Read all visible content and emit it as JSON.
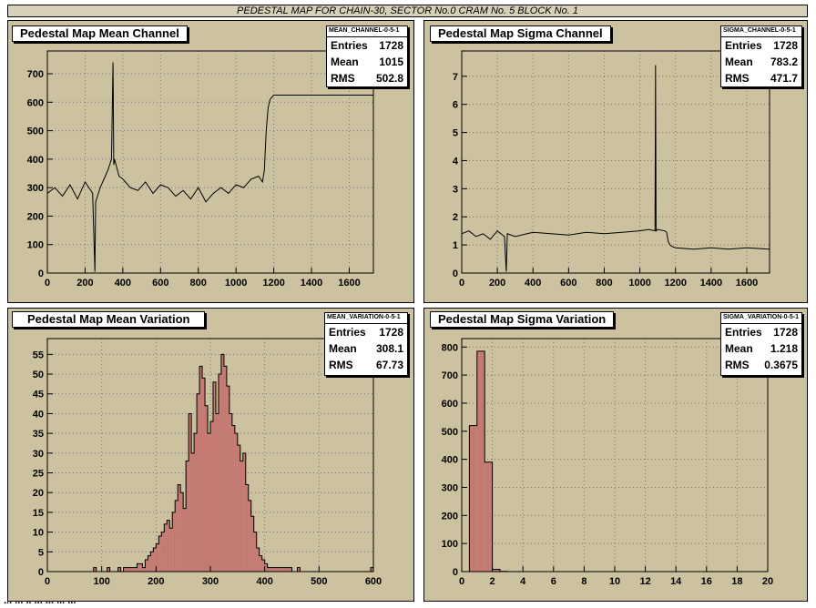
{
  "page_title": "PEDESTAL MAP FOR CHAIN-30, SECTOR No.0 CRAM No. 5 BLOCK No. 1",
  "footer": "... ... .. ... ... ... ...",
  "colors": {
    "pad_bg": "#ccc2a0",
    "hist_fill": "#c47a72",
    "line": "#000000"
  },
  "panels": [
    {
      "title": "Pedestal Map Mean Channel",
      "stats": {
        "name": "MEAN_CHANNEL-0-5-1",
        "rows": [
          [
            "Entries",
            "1728"
          ],
          [
            "Mean",
            "1015"
          ],
          [
            "RMS",
            "502.8"
          ]
        ]
      }
    },
    {
      "title": "Pedestal Map Sigma Channel",
      "stats": {
        "name": "SIGMA_CHANNEL-0-5-1",
        "rows": [
          [
            "Entries",
            "1728"
          ],
          [
            "Mean",
            "783.2"
          ],
          [
            "RMS",
            "471.7"
          ]
        ]
      }
    },
    {
      "title": "Pedestal Map Mean Variation",
      "stats": {
        "name": "MEAN_VARIATION-0-5-1",
        "rows": [
          [
            "Entries",
            "1728"
          ],
          [
            "Mean",
            "308.1"
          ],
          [
            "RMS",
            "67.73"
          ]
        ]
      }
    },
    {
      "title": "Pedestal Map Sigma Variation",
      "stats": {
        "name": "SIGMA_VARIATION-0-5-1",
        "rows": [
          [
            "Entries",
            "1728"
          ],
          [
            "Mean",
            "1.218"
          ],
          [
            "RMS",
            "0.3675"
          ]
        ]
      }
    }
  ],
  "chart_data": [
    {
      "type": "line",
      "title": "Pedestal Map Mean Channel",
      "xlim": [
        0,
        1728
      ],
      "ylim": [
        0,
        780
      ],
      "xticks": [
        0,
        200,
        400,
        600,
        800,
        1000,
        1200,
        1400,
        1600
      ],
      "yticks": [
        0,
        100,
        200,
        300,
        400,
        500,
        600,
        700
      ],
      "grid": true,
      "x": [
        0,
        40,
        80,
        120,
        160,
        200,
        240,
        252,
        256,
        280,
        320,
        340,
        348,
        352,
        356,
        380,
        400,
        440,
        480,
        520,
        560,
        600,
        640,
        680,
        720,
        760,
        800,
        840,
        880,
        920,
        960,
        1000,
        1040,
        1080,
        1120,
        1140,
        1150,
        1160,
        1170,
        1180,
        1200,
        1250,
        1300,
        1400,
        1500,
        1600,
        1728
      ],
      "y": [
        280,
        300,
        270,
        310,
        260,
        320,
        280,
        5,
        250,
        300,
        360,
        400,
        740,
        380,
        400,
        340,
        330,
        300,
        290,
        320,
        280,
        310,
        300,
        270,
        290,
        260,
        300,
        250,
        280,
        300,
        280,
        310,
        300,
        330,
        340,
        320,
        360,
        500,
        580,
        610,
        625,
        625,
        625,
        625,
        625,
        625,
        625
      ]
    },
    {
      "type": "line",
      "title": "Pedestal Map Sigma Channel",
      "xlim": [
        0,
        1728
      ],
      "ylim": [
        0,
        7.9
      ],
      "xticks": [
        0,
        200,
        400,
        600,
        800,
        1000,
        1200,
        1400,
        1600
      ],
      "yticks": [
        0,
        1,
        2,
        3,
        4,
        5,
        6,
        7
      ],
      "grid": true,
      "x": [
        0,
        40,
        80,
        120,
        160,
        200,
        240,
        250,
        256,
        300,
        400,
        500,
        600,
        700,
        800,
        900,
        1000,
        1050,
        1085,
        1088,
        1091,
        1100,
        1140,
        1150,
        1160,
        1170,
        1180,
        1200,
        1300,
        1400,
        1500,
        1600,
        1728
      ],
      "y": [
        1.4,
        1.5,
        1.3,
        1.4,
        1.2,
        1.5,
        1.3,
        0.05,
        1.4,
        1.3,
        1.45,
        1.4,
        1.35,
        1.45,
        1.4,
        1.45,
        1.5,
        1.55,
        1.5,
        7.4,
        1.5,
        1.55,
        1.5,
        1.45,
        1.1,
        1.0,
        0.95,
        0.9,
        0.85,
        0.9,
        0.85,
        0.9,
        0.85
      ]
    },
    {
      "type": "bar",
      "title": "Pedestal Map Mean Variation",
      "xlim": [
        0,
        600
      ],
      "ylim": [
        0,
        59
      ],
      "xticks": [
        0,
        100,
        200,
        300,
        400,
        500,
        600
      ],
      "yticks": [
        0,
        5,
        10,
        15,
        20,
        25,
        30,
        35,
        40,
        45,
        50,
        55
      ],
      "grid": true,
      "bin_start": 0,
      "bin_width": 5,
      "values": [
        0,
        0,
        0,
        0,
        0,
        0,
        0,
        0,
        0,
        0,
        0,
        0,
        0,
        0,
        0,
        0,
        0,
        1,
        0,
        0,
        0,
        0,
        1,
        0,
        0,
        0,
        1,
        0,
        1,
        1,
        1,
        1,
        1,
        2,
        2,
        1,
        3,
        4,
        5,
        6,
        7,
        9,
        10,
        12,
        13,
        11,
        15,
        18,
        22,
        20,
        16,
        28,
        40,
        30,
        35,
        45,
        52,
        49,
        42,
        35,
        38,
        48,
        40,
        50,
        55,
        52,
        47,
        40,
        37,
        35,
        32,
        28,
        30,
        22,
        18,
        14,
        10,
        6,
        4,
        3,
        2,
        1,
        1,
        1,
        1,
        1,
        1,
        1,
        1,
        1,
        0,
        0,
        1,
        0,
        0,
        0,
        0,
        0,
        0,
        0,
        0,
        0,
        0,
        0,
        0,
        0,
        0,
        0,
        0,
        0,
        0,
        0,
        0,
        0,
        0,
        0,
        0,
        0,
        0,
        1
      ]
    },
    {
      "type": "bar",
      "title": "Pedestal Map Sigma Variation",
      "xlim": [
        0,
        20
      ],
      "ylim": [
        0,
        830
      ],
      "xticks": [
        0,
        2,
        4,
        6,
        8,
        10,
        12,
        14,
        16,
        18,
        20
      ],
      "yticks": [
        0,
        100,
        200,
        300,
        400,
        500,
        600,
        700,
        800
      ],
      "grid": true,
      "bin_start": 0,
      "bin_width": 0.5,
      "values": [
        0,
        520,
        785,
        390,
        8,
        1,
        0,
        0,
        0,
        0,
        0,
        0,
        0,
        0,
        0,
        0,
        0,
        0,
        0,
        0,
        0,
        0,
        0,
        0,
        0,
        0,
        0,
        0,
        0,
        0,
        0,
        0,
        0,
        0,
        0,
        0,
        0,
        0,
        0,
        0
      ]
    }
  ]
}
